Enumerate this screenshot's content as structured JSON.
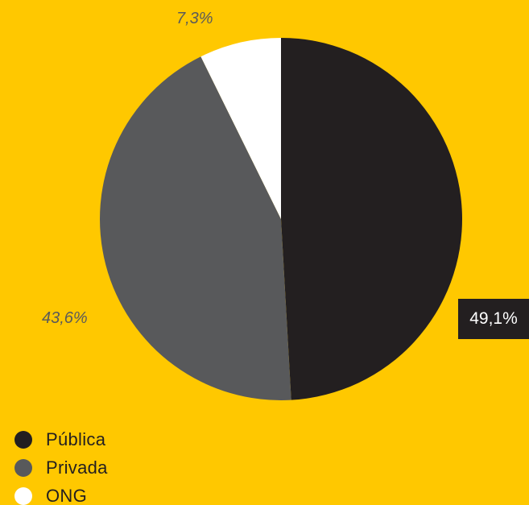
{
  "chart_data": {
    "type": "pie",
    "title": "",
    "slices": [
      {
        "name": "Pública",
        "value": 49.1,
        "label": "49,1%",
        "color": "#231F20"
      },
      {
        "name": "Privada",
        "value": 43.6,
        "label": "43,6%",
        "color": "#58595B"
      },
      {
        "name": "ONG",
        "value": 7.3,
        "label": "7,3%",
        "color": "#FFFFFF"
      }
    ],
    "legend_position": "bottom-left"
  },
  "colors": {
    "background": "#FFC800",
    "label_text": "#5a5a5a",
    "highlight_label_bg": "#231F20"
  }
}
